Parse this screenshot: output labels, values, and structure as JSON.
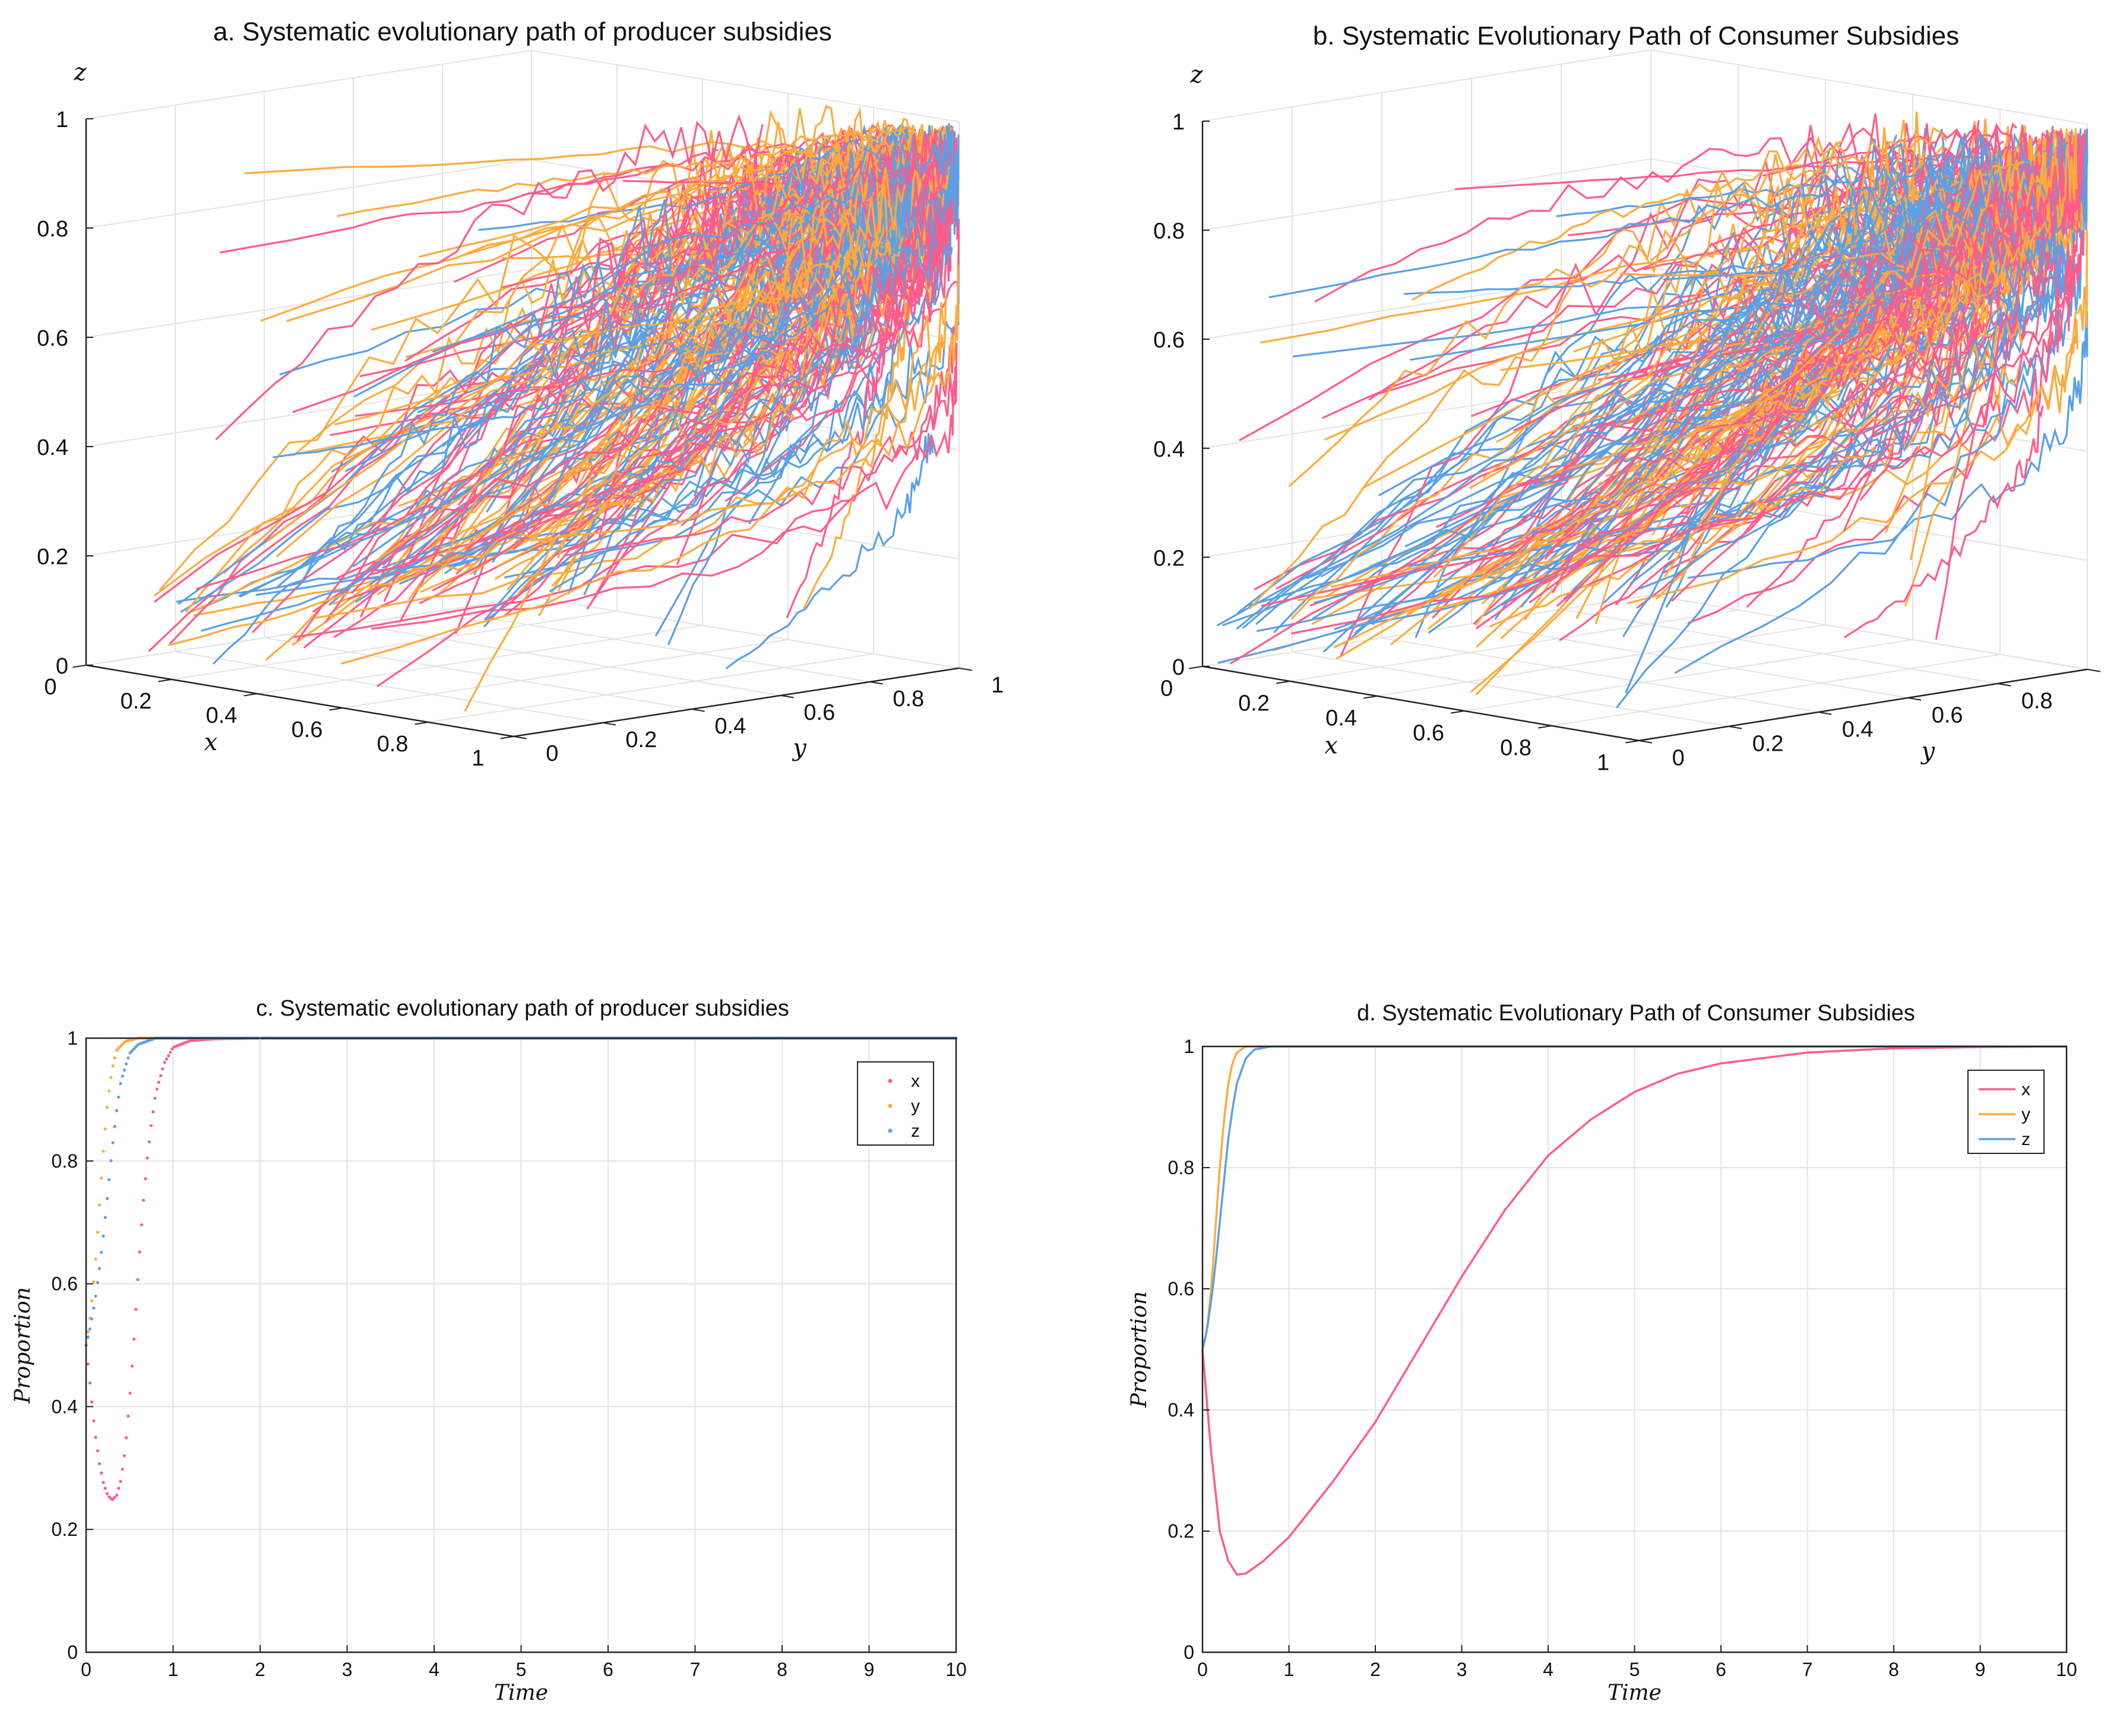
{
  "colors": {
    "x": "#ff5c8a",
    "y": "#ffaa3c",
    "z": "#5aa0e6",
    "grid": "#e3e3e3",
    "axis": "#222222"
  },
  "chart_data": [
    {
      "id": "a",
      "type": "line3d",
      "title": "a. Systematic evolutionary path of producer subsidies",
      "xlabel": "x",
      "ylabel": "y",
      "zlabel": "z",
      "xlim": [
        0,
        1
      ],
      "ylim": [
        0,
        1
      ],
      "zlim": [
        0,
        1
      ],
      "xticks": [
        "0",
        "0.2",
        "0.4",
        "0.6",
        "0.8",
        "1"
      ],
      "yticks": [
        "0",
        "0.2",
        "0.4",
        "0.6",
        "0.8",
        "1"
      ],
      "zticks": [
        "0",
        "0.2",
        "0.4",
        "0.6",
        "0.8",
        "1"
      ],
      "grid": true,
      "attractor": [
        1,
        1,
        1
      ],
      "series_colors": [
        "x",
        "y",
        "z"
      ],
      "trajectory_count": 210
    },
    {
      "id": "b",
      "type": "line3d",
      "title": "b. Systematic Evolutionary Path of Consumer Subsidies",
      "xlabel": "x",
      "ylabel": "y",
      "zlabel": "z",
      "xlim": [
        0,
        1
      ],
      "ylim": [
        0,
        1
      ],
      "zlim": [
        0,
        1
      ],
      "xticks": [
        "0",
        "0.2",
        "0.4",
        "0.6",
        "0.8",
        "1"
      ],
      "yticks": [
        "0",
        "0.2",
        "0.4",
        "0.6",
        "0.8",
        "1"
      ],
      "zticks": [
        "0",
        "0.2",
        "0.4",
        "0.6",
        "0.8",
        "1"
      ],
      "grid": true,
      "attractor": [
        1,
        1,
        1
      ],
      "series_colors": [
        "x",
        "y",
        "z"
      ],
      "trajectory_count": 220
    },
    {
      "id": "c",
      "type": "scatter",
      "title": "c. Systematic evolutionary path of producer subsidies",
      "xlabel": "Time",
      "ylabel": "Proportion",
      "xlim": [
        0,
        10
      ],
      "ylim": [
        0,
        1
      ],
      "xticks": [
        "0",
        "1",
        "2",
        "3",
        "4",
        "5",
        "6",
        "7",
        "8",
        "9",
        "10"
      ],
      "yticks": [
        "0",
        "0.2",
        "0.4",
        "0.6",
        "0.8",
        "1"
      ],
      "grid": true,
      "legend": {
        "position": "top-right",
        "entries": [
          "x",
          "y",
          "z"
        ]
      },
      "series": [
        {
          "name": "x",
          "color": "x",
          "points": [
            [
              0,
              0.5
            ],
            [
              0.05,
              0.43
            ],
            [
              0.1,
              0.36
            ],
            [
              0.15,
              0.31
            ],
            [
              0.2,
              0.275
            ],
            [
              0.25,
              0.255
            ],
            [
              0.3,
              0.248
            ],
            [
              0.35,
              0.255
            ],
            [
              0.4,
              0.28
            ],
            [
              0.45,
              0.33
            ],
            [
              0.5,
              0.41
            ],
            [
              0.55,
              0.51
            ],
            [
              0.6,
              0.62
            ],
            [
              0.65,
              0.72
            ],
            [
              0.7,
              0.8
            ],
            [
              0.75,
              0.86
            ],
            [
              0.8,
              0.91
            ],
            [
              0.9,
              0.96
            ],
            [
              1.0,
              0.985
            ],
            [
              1.2,
              0.996
            ],
            [
              1.5,
              0.999
            ],
            [
              2,
              1.0
            ],
            [
              10,
              1.0
            ]
          ]
        },
        {
          "name": "y",
          "color": "y",
          "points": [
            [
              0,
              0.5
            ],
            [
              0.05,
              0.55
            ],
            [
              0.1,
              0.62
            ],
            [
              0.15,
              0.72
            ],
            [
              0.2,
              0.82
            ],
            [
              0.25,
              0.9
            ],
            [
              0.3,
              0.95
            ],
            [
              0.35,
              0.98
            ],
            [
              0.45,
              0.995
            ],
            [
              0.6,
              1.0
            ],
            [
              10,
              1.0
            ]
          ]
        },
        {
          "name": "z",
          "color": "z",
          "points": [
            [
              0,
              0.5
            ],
            [
              0.05,
              0.53
            ],
            [
              0.1,
              0.57
            ],
            [
              0.15,
              0.62
            ],
            [
              0.2,
              0.68
            ],
            [
              0.25,
              0.75
            ],
            [
              0.3,
              0.82
            ],
            [
              0.35,
              0.88
            ],
            [
              0.4,
              0.93
            ],
            [
              0.5,
              0.975
            ],
            [
              0.6,
              0.99
            ],
            [
              0.8,
              1.0
            ],
            [
              10,
              1.0
            ]
          ]
        }
      ]
    },
    {
      "id": "d",
      "type": "line",
      "title": "d. Systematic Evolutionary Path of Consumer Subsidies",
      "xlabel": "Time",
      "ylabel": "Proportion",
      "xlim": [
        0,
        10
      ],
      "ylim": [
        0,
        1
      ],
      "xticks": [
        "0",
        "1",
        "2",
        "3",
        "4",
        "5",
        "6",
        "7",
        "8",
        "9",
        "10"
      ],
      "yticks": [
        "0",
        "0.2",
        "0.4",
        "0.6",
        "0.8",
        "1"
      ],
      "grid": true,
      "legend": {
        "position": "top-right",
        "entries": [
          "x",
          "y",
          "z"
        ]
      },
      "series": [
        {
          "name": "x",
          "color": "x",
          "points": [
            [
              0,
              0.5
            ],
            [
              0.1,
              0.33
            ],
            [
              0.2,
              0.2
            ],
            [
              0.3,
              0.15
            ],
            [
              0.4,
              0.128
            ],
            [
              0.5,
              0.13
            ],
            [
              0.7,
              0.15
            ],
            [
              1,
              0.19
            ],
            [
              1.5,
              0.28
            ],
            [
              2,
              0.38
            ],
            [
              2.5,
              0.5
            ],
            [
              3,
              0.62
            ],
            [
              3.5,
              0.73
            ],
            [
              4,
              0.82
            ],
            [
              4.5,
              0.88
            ],
            [
              5,
              0.925
            ],
            [
              5.5,
              0.955
            ],
            [
              6,
              0.972
            ],
            [
              7,
              0.99
            ],
            [
              8,
              0.997
            ],
            [
              9,
              0.999
            ],
            [
              10,
              1.0
            ]
          ]
        },
        {
          "name": "y",
          "color": "y",
          "points": [
            [
              0,
              0.5
            ],
            [
              0.05,
              0.53
            ],
            [
              0.1,
              0.6
            ],
            [
              0.15,
              0.7
            ],
            [
              0.2,
              0.8
            ],
            [
              0.25,
              0.88
            ],
            [
              0.3,
              0.94
            ],
            [
              0.35,
              0.975
            ],
            [
              0.4,
              0.99
            ],
            [
              0.5,
              1.0
            ],
            [
              10,
              1.0
            ]
          ]
        },
        {
          "name": "z",
          "color": "z",
          "points": [
            [
              0,
              0.5
            ],
            [
              0.05,
              0.53
            ],
            [
              0.1,
              0.58
            ],
            [
              0.15,
              0.64
            ],
            [
              0.2,
              0.71
            ],
            [
              0.25,
              0.78
            ],
            [
              0.3,
              0.85
            ],
            [
              0.35,
              0.9
            ],
            [
              0.4,
              0.94
            ],
            [
              0.5,
              0.98
            ],
            [
              0.6,
              0.995
            ],
            [
              0.8,
              1.0
            ],
            [
              10,
              1.0
            ]
          ]
        }
      ]
    }
  ]
}
